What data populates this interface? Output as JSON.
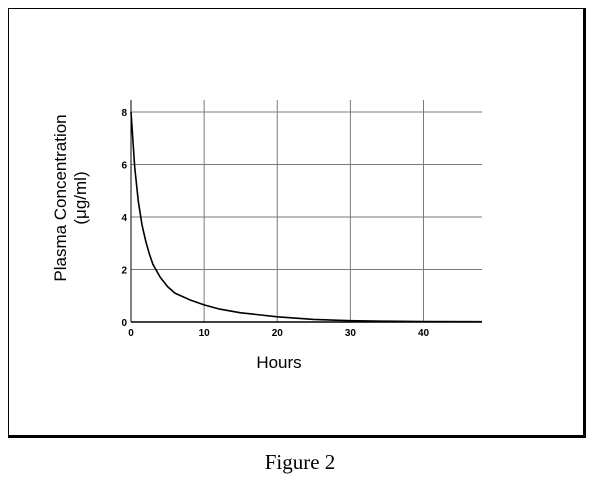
{
  "caption": "Figure 2",
  "chart_data": {
    "type": "line",
    "title": "",
    "xlabel": "Hours",
    "ylabel": "Plasma Concentration",
    "ylabel_unit": "(μg/ml)",
    "xlim": [
      0,
      48
    ],
    "ylim": [
      0,
      8
    ],
    "xticks": [
      0,
      10,
      20,
      30,
      40
    ],
    "yticks": [
      0,
      2,
      4,
      6,
      8
    ],
    "grid": true,
    "series": [
      {
        "color": "#000000",
        "x": [
          0,
          0.5,
          1,
          1.5,
          2,
          2.5,
          3,
          4,
          5,
          6,
          8,
          10,
          12,
          15,
          20,
          25,
          30,
          35,
          40,
          48
        ],
        "y": [
          8.0,
          5.9,
          4.6,
          3.7,
          3.1,
          2.6,
          2.2,
          1.7,
          1.35,
          1.1,
          0.85,
          0.65,
          0.5,
          0.35,
          0.2,
          0.1,
          0.05,
          0.03,
          0.02,
          0.01
        ]
      }
    ]
  }
}
